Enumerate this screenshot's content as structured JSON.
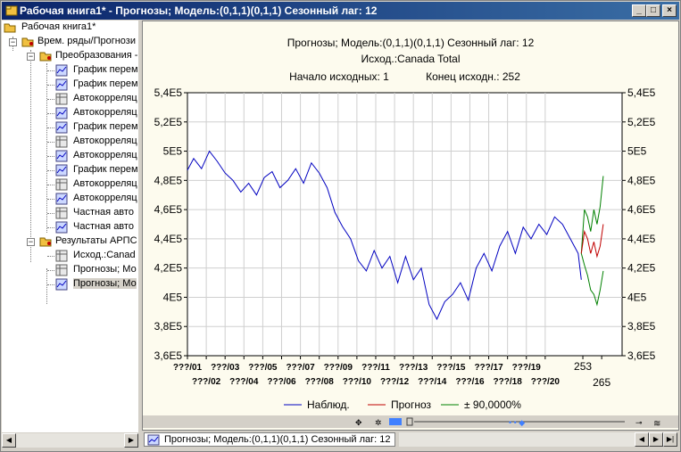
{
  "window": {
    "title": "Рабочая книга1* - Прогнозы; Модель:(0,1,1)(0,1,1) Сезонный лаг: 12",
    "controls": [
      "_",
      "□",
      "×"
    ]
  },
  "tree": {
    "root": "Рабочая книга1*",
    "series_node": "Врем. ряды/Прогнози",
    "transform_node": "Преобразования -",
    "transform_items": [
      {
        "label": "График перем",
        "icon": "chart-icon"
      },
      {
        "label": "График перем",
        "icon": "chart-icon"
      },
      {
        "label": "Автокорреляц",
        "icon": "table-icon"
      },
      {
        "label": "Автокорреляц",
        "icon": "chart-icon"
      },
      {
        "label": "График перем",
        "icon": "chart-icon"
      },
      {
        "label": "Автокорреляц",
        "icon": "table-icon"
      },
      {
        "label": "Автокорреляц",
        "icon": "chart-icon"
      },
      {
        "label": "График перем",
        "icon": "chart-icon"
      },
      {
        "label": "Автокорреляц",
        "icon": "table-icon"
      },
      {
        "label": "Автокорреляц",
        "icon": "chart-icon"
      },
      {
        "label": "Частная авто",
        "icon": "table-icon"
      },
      {
        "label": "Частная авто",
        "icon": "chart-icon"
      }
    ],
    "results_node": "Результаты АРПС",
    "results_items": [
      {
        "label": "Исход.:Canad",
        "icon": "table-icon"
      },
      {
        "label": "Прогнозы; Мо",
        "icon": "table-icon"
      },
      {
        "label": "Прогнозы; Мо",
        "icon": "chart-icon",
        "selected": true
      }
    ]
  },
  "doc_tab": {
    "label": "Прогнозы; Модель:(0,1,1)(0,1,1) Сезонный лаг: 12"
  },
  "chart_data": {
    "type": "line",
    "title_lines": [
      "Прогнозы; Модель:(0,1,1)(0,1,1) Сезонный лаг: 12",
      "Исход.:Canada Total"
    ],
    "subtitle_start": "Начало исходных: 1",
    "subtitle_end": "Конец исходн.: 252",
    "ylim": [
      360000,
      540000
    ],
    "y_ticks": [
      360000,
      380000,
      400000,
      420000,
      440000,
      460000,
      480000,
      500000,
      520000,
      540000
    ],
    "y_tick_labels": [
      "3,6E5",
      "3,8E5",
      "4E5",
      "4,2E5",
      "4,4E5",
      "4,6E5",
      "4,8E5",
      "5E5",
      "5,2E5",
      "5,4E5"
    ],
    "xlim": [
      1,
      278
    ],
    "x_tick_labels_top": [
      "???/01",
      "???/03",
      "???/05",
      "???/07",
      "???/09",
      "???/11",
      "???/13",
      "???/15",
      "???/17",
      "???/19"
    ],
    "x_tick_labels_bottom": [
      "???/02",
      "???/04",
      "???/06",
      "???/08",
      "???/10",
      "???/12",
      "???/14",
      "???/16",
      "???/18",
      "???/20"
    ],
    "extra_ticks": [
      {
        "x": 253,
        "label": "253"
      },
      {
        "x": 265,
        "label": "265"
      }
    ],
    "grid": true,
    "legend_position": "bottom",
    "series": [
      {
        "name": "Наблюд.",
        "color": "#0000c0",
        "x": [
          1,
          5,
          10,
          15,
          20,
          25,
          30,
          35,
          40,
          45,
          50,
          55,
          60,
          65,
          70,
          75,
          80,
          85,
          90,
          95,
          100,
          105,
          110,
          115,
          120,
          125,
          130,
          135,
          140,
          145,
          150,
          155,
          160,
          165,
          170,
          175,
          180,
          185,
          190,
          195,
          200,
          205,
          210,
          215,
          220,
          225,
          230,
          235,
          240,
          245,
          250,
          252
        ],
        "y": [
          487000,
          495000,
          488000,
          500000,
          493000,
          485000,
          480000,
          472000,
          478000,
          470000,
          482000,
          486000,
          475000,
          480000,
          488000,
          478000,
          492000,
          485000,
          475000,
          458000,
          448000,
          440000,
          425000,
          418000,
          432000,
          420000,
          428000,
          410000,
          428000,
          412000,
          420000,
          395000,
          385000,
          397000,
          402000,
          410000,
          398000,
          420000,
          430000,
          418000,
          435000,
          445000,
          430000,
          448000,
          440000,
          450000,
          443000,
          455000,
          450000,
          440000,
          430000,
          412000
        ]
      },
      {
        "name": "Прогноз",
        "color": "#c00000",
        "x": [
          252,
          254,
          256,
          258,
          260,
          262,
          264,
          266
        ],
        "y": [
          430000,
          445000,
          440000,
          430000,
          438000,
          428000,
          435000,
          450000
        ]
      },
      {
        "name": "± 90,0000%",
        "color": "#008000",
        "x": [
          252,
          254,
          256,
          258,
          260,
          262,
          264,
          266
        ],
        "y": [
          430000,
          460000,
          455000,
          445000,
          460000,
          450000,
          462000,
          483000
        ],
        "lower_x": [
          252,
          254,
          256,
          258,
          260,
          262,
          264,
          266
        ],
        "lower_y": [
          430000,
          422000,
          415000,
          405000,
          402000,
          395000,
          405000,
          418000
        ]
      }
    ]
  }
}
